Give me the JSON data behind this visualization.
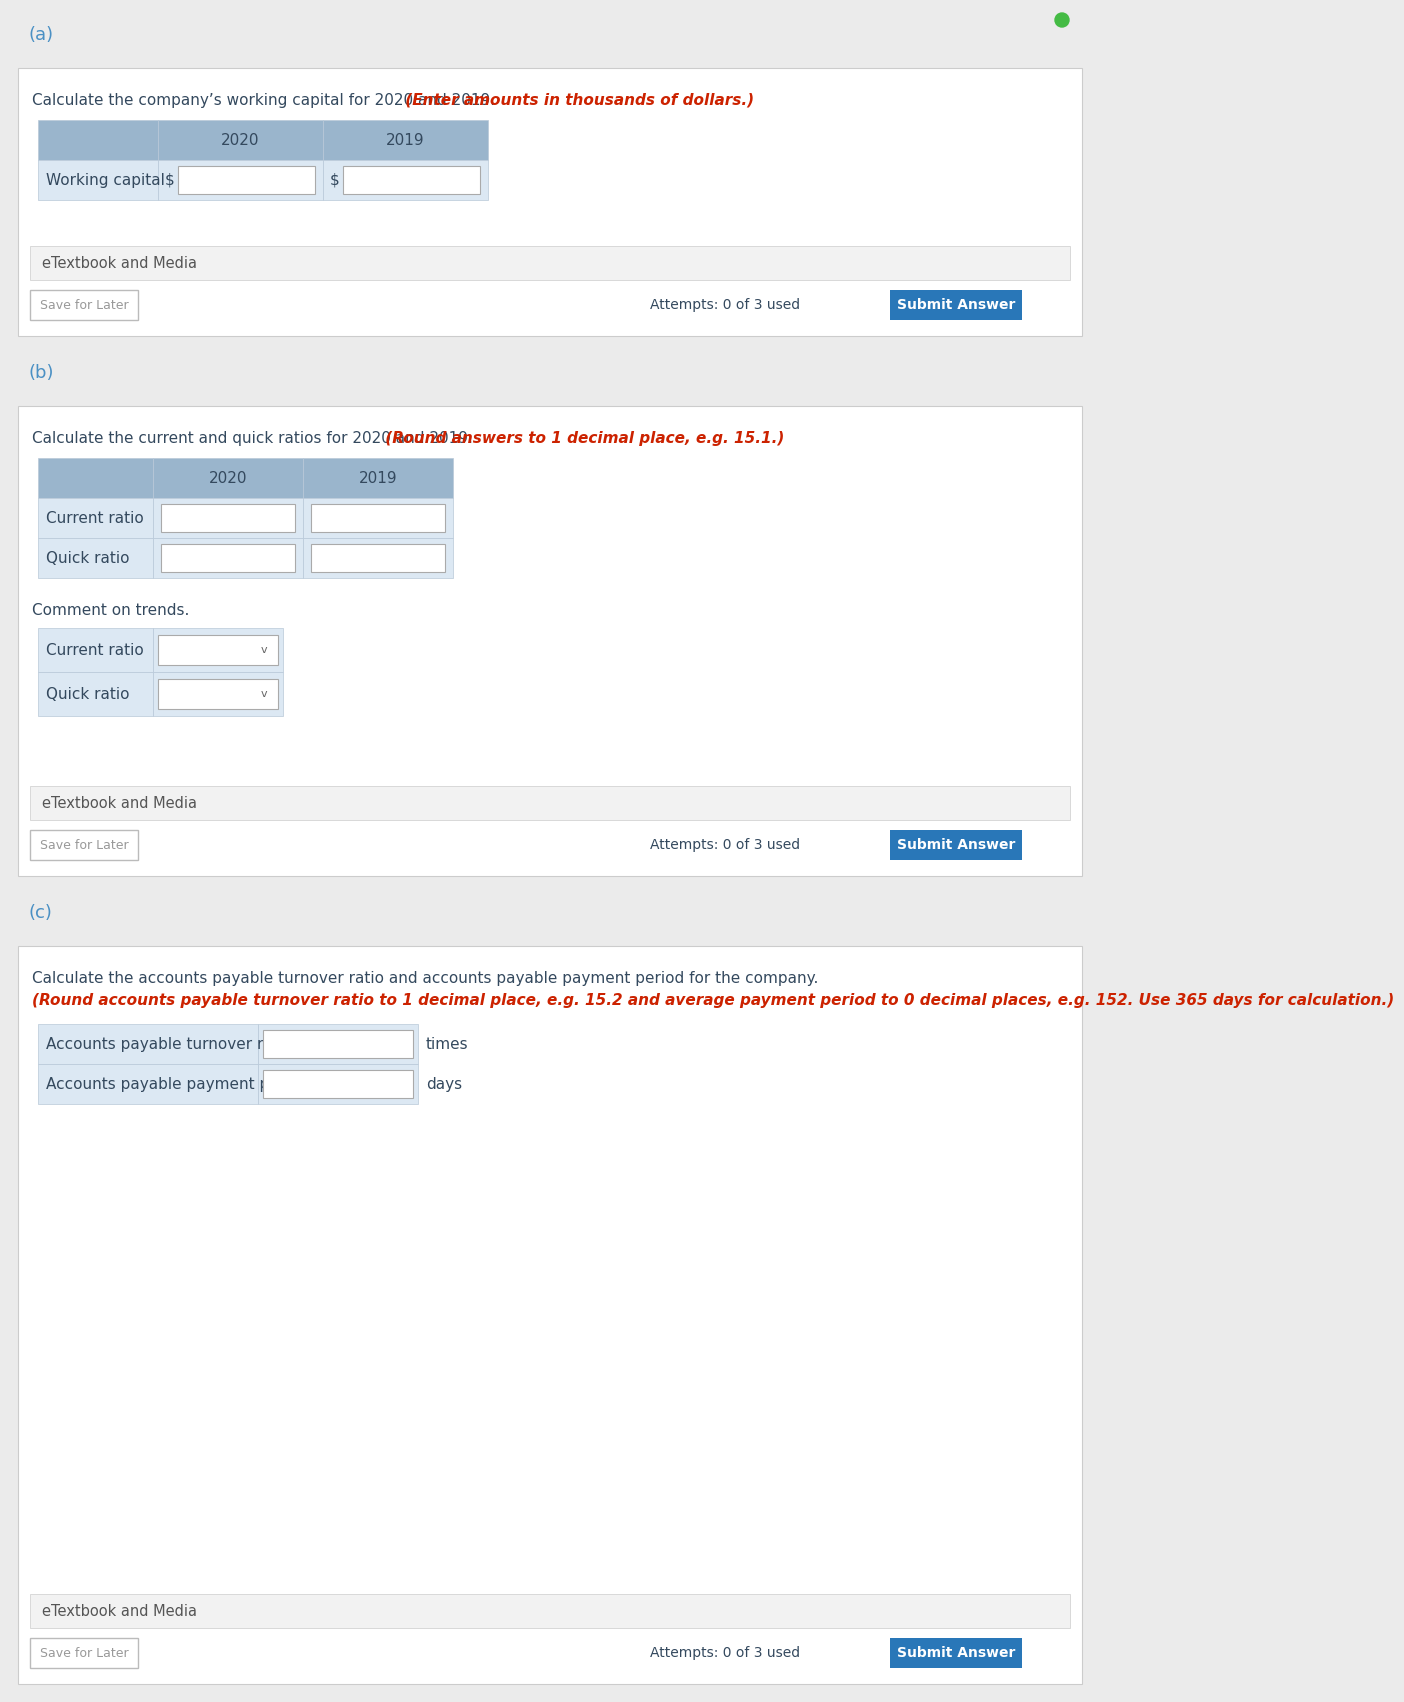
{
  "bg_color": "#ebebeb",
  "white": "#ffffff",
  "light_blue_header": "#9ab5cc",
  "light_blue_row": "#dce8f3",
  "border_color": "#b8c8d8",
  "text_dark": "#34495e",
  "text_red": "#cc2200",
  "text_link_blue": "#4a90c4",
  "text_gray": "#999999",
  "submit_btn_color": "#2977b8",
  "etextbook_bg": "#f0f0f0",
  "section_a_label": "(a)",
  "section_b_label": "(b)",
  "section_c_label": "(c)",
  "section_a_instruction_normal": "Calculate the company’s working capital for 2020 and 2019.",
  "section_a_instruction_red": "(Enter amounts in thousands of dollars.)",
  "section_b_instruction_normal": "Calculate the current and quick ratios for 2020 and 2019.",
  "section_b_instruction_red": "(Round answers to 1 decimal place, e.g. 15.1.)",
  "section_c_instruction_normal": "Calculate the accounts payable turnover ratio and accounts payable payment period for the company.",
  "section_c_instruction_red": "(Round accounts payable turnover ratio to 1 decimal place, e.g. 15.2 and average payment period to 0 decimal places, e.g. 152. Use 365 days for calculation.)",
  "col_2020": "2020",
  "col_2019": "2019",
  "row_a1": "Working capital",
  "dollar_sign": "$",
  "row_b1": "Current ratio",
  "row_b2": "Quick ratio",
  "comment_label": "Comment on trends.",
  "comment_row1": "Current ratio",
  "comment_row2": "Quick ratio",
  "etextbook_label": "eTextbook and Media",
  "save_label": "Save for Later",
  "attempts_label": "Attempts: 0 of 3 used",
  "submit_label": "Submit Answer",
  "row_c1": "Accounts payable turnover ratio",
  "row_c2": "Accounts payable payment period",
  "unit_c1": "times",
  "unit_c2": "days",
  "green_dot_color": "#44bb44"
}
